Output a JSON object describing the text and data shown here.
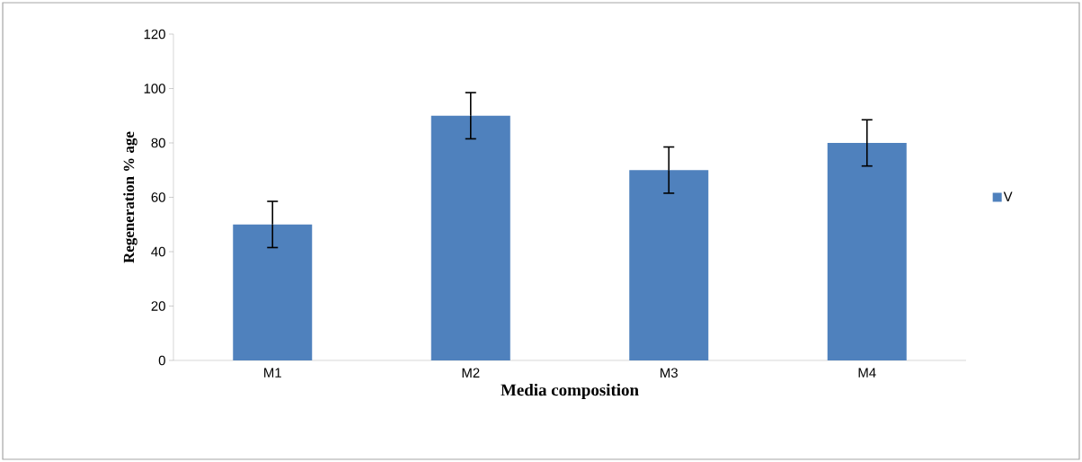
{
  "chart_data": {
    "type": "bar",
    "xlabel": "Media composition",
    "ylabel": "Regeneration % age",
    "categories": [
      "M1",
      "M2",
      "M3",
      "M4"
    ],
    "series": [
      {
        "name": "V",
        "color": "#4f81bd",
        "values": [
          50,
          90,
          70,
          80
        ],
        "errors": [
          8.5,
          8.5,
          8.5,
          8.5
        ]
      }
    ],
    "ylim": [
      0,
      120
    ],
    "yticks": [
      0,
      20,
      40,
      60,
      80,
      100,
      120
    ],
    "legend": "right",
    "grid": false
  }
}
